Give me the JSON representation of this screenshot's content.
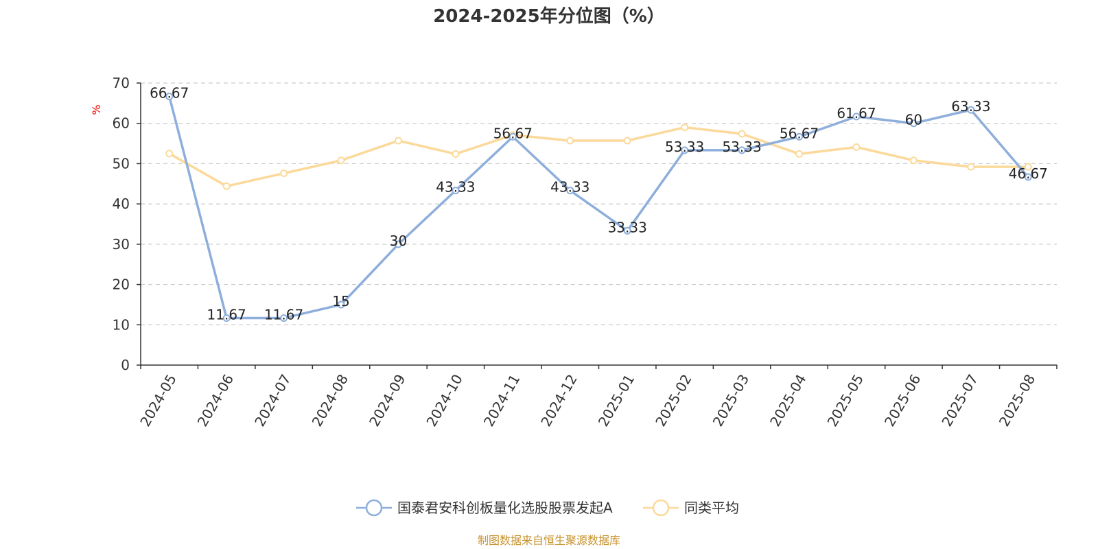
{
  "chart_data": {
    "type": "line",
    "title": "2024-2025年分位图（%）",
    "y_unit": "%",
    "ylim": [
      0,
      70
    ],
    "y_ticks": [
      0,
      10,
      20,
      30,
      40,
      50,
      60,
      70
    ],
    "categories": [
      "2024-05",
      "2024-06",
      "2024-07",
      "2024-08",
      "2024-09",
      "2024-10",
      "2024-11",
      "2024-12",
      "2025-01",
      "2025-02",
      "2025-03",
      "2025-04",
      "2025-05",
      "2025-06",
      "2025-07",
      "2025-08"
    ],
    "series": [
      {
        "name": "国泰君安科创板量化选股股票发起A",
        "color": "#8eaedb",
        "show_labels": true,
        "values": [
          66.67,
          11.67,
          11.67,
          15,
          30,
          43.33,
          56.67,
          43.33,
          33.33,
          53.33,
          53.33,
          56.67,
          61.67,
          60,
          63.33,
          46.67
        ]
      },
      {
        "name": "同类平均",
        "color": "#fbd99a",
        "show_labels": false,
        "values": [
          52.5,
          44.4,
          47.6,
          50.8,
          55.7,
          52.4,
          57.1,
          55.7,
          55.7,
          59.0,
          57.4,
          52.4,
          54.1,
          50.8,
          49.2,
          49.2
        ]
      }
    ],
    "grid": true,
    "legend_position": "bottom-center"
  },
  "source_text": "制图数据来自恒生聚源数据库",
  "colors": {
    "unit_label": "#ff0000",
    "source_text": "#c8932e"
  }
}
